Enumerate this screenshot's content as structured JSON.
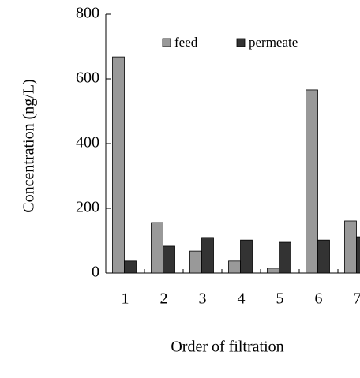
{
  "chart_data": {
    "type": "bar",
    "x_label": "Order of filtration",
    "y_label": "Concentration (ng/L)",
    "categories": [
      "1",
      "2",
      "3",
      "4",
      "5",
      "6",
      "7"
    ],
    "series": [
      {
        "name": "feed",
        "color": "#999999",
        "values": [
          668,
          156,
          68,
          37,
          15,
          566,
          161
        ]
      },
      {
        "name": "permeate",
        "color": "#333333",
        "values": [
          37,
          83,
          110,
          102,
          95,
          102,
          112
        ]
      }
    ],
    "ylim": [
      0,
      800
    ],
    "yticks": [
      0,
      200,
      400,
      600,
      800
    ]
  }
}
